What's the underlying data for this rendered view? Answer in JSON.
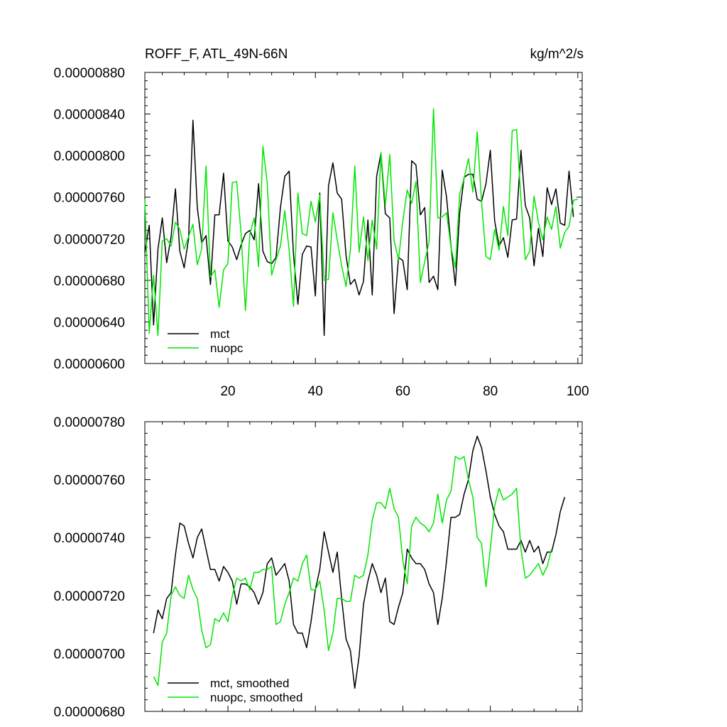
{
  "colors": {
    "mct": "#000000",
    "nuopc": "#00e600",
    "axes": "#000000",
    "background": "#ffffff"
  },
  "chart_data": [
    {
      "type": "line",
      "title": "ROFF_F, ATL_49N-66N",
      "units": "kg/m^2/s",
      "xlabel": "",
      "ylabel": "",
      "xlim": [
        1,
        101
      ],
      "ylim": [
        6e-06,
        8.8e-06
      ],
      "xticks": [
        20,
        40,
        60,
        80,
        100
      ],
      "xtick_labels": [
        "20",
        "40",
        "60",
        "80",
        "100"
      ],
      "yticks": [
        6e-06,
        6.4e-06,
        6.8e-06,
        7.2e-06,
        7.6e-06,
        8e-06,
        8.4e-06,
        8.8e-06
      ],
      "ytick_labels": [
        "0.00000600",
        "0.00000640",
        "0.00000680",
        "0.00000720",
        "0.00000760",
        "0.00000800",
        "0.00000840",
        "0.00000880"
      ],
      "legend": {
        "position": "bottom-left",
        "entries": [
          "mct",
          "nuopc"
        ]
      },
      "series": [
        {
          "name": "mct",
          "color": "#000000",
          "values": [
            7.07,
            7.33,
            6.37,
            7.1,
            7.4,
            6.97,
            7.22,
            7.68,
            7.08,
            6.92,
            7.2,
            8.34,
            7.5,
            7.16,
            7.23,
            6.76,
            7.43,
            7.43,
            7.83,
            7.18,
            7.12,
            7.0,
            7.14,
            7.25,
            7.28,
            7.19,
            7.73,
            7.08,
            6.98,
            6.96,
            7.02,
            7.5,
            7.8,
            7.85,
            7.05,
            6.57,
            7.05,
            7.13,
            7.12,
            6.65,
            7.64,
            6.27,
            7.71,
            7.93,
            7.64,
            7.58,
            7.04,
            6.76,
            6.81,
            6.66,
            6.79,
            7.38,
            6.66,
            7.8,
            8.02,
            7.44,
            7.4,
            6.48,
            7.02,
            6.99,
            6.71,
            7.95,
            7.91,
            7.43,
            7.5,
            6.78,
            6.84,
            6.71,
            7.86,
            7.6,
            7.13,
            6.75,
            7.45,
            7.79,
            7.82,
            7.82,
            7.58,
            7.56,
            7.73,
            8.05,
            7.37,
            7.13,
            7.21,
            7.02,
            7.38,
            7.39,
            8.05,
            7.52,
            7.4,
            6.94,
            7.3,
            7.03,
            7.69,
            7.53,
            7.68,
            7.35,
            7.33,
            7.85,
            7.41
          ]
        },
        {
          "name": "nuopc",
          "color": "#00e600",
          "values": [
            7.58,
            6.29,
            6.85,
            6.27,
            7.18,
            7.2,
            7.13,
            7.36,
            7.29,
            7.1,
            7.22,
            7.34,
            6.95,
            7.1,
            7.9,
            6.83,
            6.9,
            6.54,
            6.9,
            6.96,
            7.74,
            7.75,
            7.26,
            6.51,
            7.24,
            7.4,
            6.93,
            8.09,
            7.73,
            6.85,
            7.0,
            7.13,
            7.47,
            7.09,
            6.55,
            7.64,
            7.25,
            7.23,
            7.56,
            7.36,
            7.62,
            6.8,
            6.81,
            7.45,
            7.19,
            6.94,
            6.74,
            7.09,
            7.9,
            7.07,
            7.41,
            6.99,
            7.38,
            7.1,
            8.03,
            7.52,
            8.01,
            7.18,
            7.0,
            7.37,
            7.67,
            7.54,
            7.75,
            6.78,
            6.98,
            7.17,
            8.45,
            7.4,
            7.41,
            7.45,
            7.12,
            6.92,
            7.63,
            7.78,
            7.97,
            7.65,
            8.23,
            7.55,
            7.03,
            7.0,
            7.29,
            7.09,
            7.51,
            7.23,
            8.24,
            8.25,
            7.58,
            7.0,
            7.08,
            7.61,
            7.36,
            7.19,
            7.41,
            7.29,
            7.51,
            7.11,
            7.26,
            7.32,
            7.57,
            7.58
          ]
        }
      ]
    },
    {
      "type": "line",
      "title": "",
      "xlabel": "",
      "ylabel": "",
      "xlim": [
        1,
        101
      ],
      "ylim": [
        6.8e-06,
        7.8e-06
      ],
      "xticks": [
        20,
        40,
        60,
        80,
        100
      ],
      "xtick_labels": [],
      "yticks": [
        6.8e-06,
        7e-06,
        7.2e-06,
        7.4e-06,
        7.6e-06,
        7.8e-06
      ],
      "ytick_labels": [
        "0.00000680",
        "0.00000700",
        "0.00000720",
        "0.00000740",
        "0.00000760",
        "0.00000780"
      ],
      "legend": {
        "position": "bottom-left",
        "entries": [
          "mct, smoothed",
          "nuopc, smoothed"
        ]
      },
      "series": [
        {
          "name": "mct, smoothed",
          "color": "#000000",
          "x_start": 3,
          "values": [
            7.07,
            7.15,
            7.12,
            7.19,
            7.21,
            7.34,
            7.45,
            7.44,
            7.38,
            7.33,
            7.4,
            7.43,
            7.36,
            7.29,
            7.29,
            7.25,
            7.3,
            7.28,
            7.25,
            7.17,
            7.24,
            7.24,
            7.23,
            7.21,
            7.17,
            7.21,
            7.31,
            7.33,
            7.27,
            7.29,
            7.31,
            7.25,
            7.1,
            7.07,
            7.07,
            7.02,
            7.11,
            7.22,
            7.29,
            7.42,
            7.35,
            7.28,
            7.35,
            7.19,
            7.05,
            7.01,
            6.88,
            6.99,
            7.17,
            7.25,
            7.31,
            7.27,
            7.21,
            7.26,
            7.11,
            7.1,
            7.16,
            7.21,
            7.36,
            7.33,
            7.31,
            7.31,
            7.29,
            7.24,
            7.21,
            7.1,
            7.19,
            7.32,
            7.47,
            7.47,
            7.48,
            7.55,
            7.6,
            7.7,
            7.75,
            7.71,
            7.63,
            7.54,
            7.48,
            7.44,
            7.42,
            7.36,
            7.36,
            7.36,
            7.39,
            7.35,
            7.39,
            7.35,
            7.37,
            7.31,
            7.35,
            7.35,
            7.41,
            7.49,
            7.54
          ]
        },
        {
          "name": "nuopc, smoothed",
          "color": "#00e600",
          "x_start": 3,
          "values": [
            6.92,
            6.89,
            7.04,
            7.07,
            7.2,
            7.23,
            7.2,
            7.19,
            7.27,
            7.22,
            7.19,
            7.08,
            7.02,
            7.03,
            7.12,
            7.11,
            7.14,
            7.11,
            7.2,
            7.26,
            7.25,
            7.26,
            7.22,
            7.28,
            7.28,
            7.29,
            7.29,
            7.3,
            7.1,
            7.11,
            7.17,
            7.21,
            7.26,
            7.25,
            7.31,
            7.34,
            7.22,
            7.22,
            7.25,
            7.15,
            7.01,
            7.07,
            7.19,
            7.19,
            7.18,
            7.18,
            7.27,
            7.26,
            7.27,
            7.34,
            7.46,
            7.52,
            7.52,
            7.5,
            7.57,
            7.5,
            7.47,
            7.32,
            7.24,
            7.44,
            7.47,
            7.45,
            7.44,
            7.42,
            7.45,
            7.55,
            7.45,
            7.53,
            7.56,
            7.68,
            7.67,
            7.68,
            7.6,
            7.54,
            7.4,
            7.38,
            7.23,
            7.36,
            7.51,
            7.57,
            7.53,
            7.54,
            7.55,
            7.57,
            7.36,
            7.26,
            7.27,
            7.29,
            7.31,
            7.27,
            7.3,
            7.36
          ]
        }
      ]
    }
  ]
}
